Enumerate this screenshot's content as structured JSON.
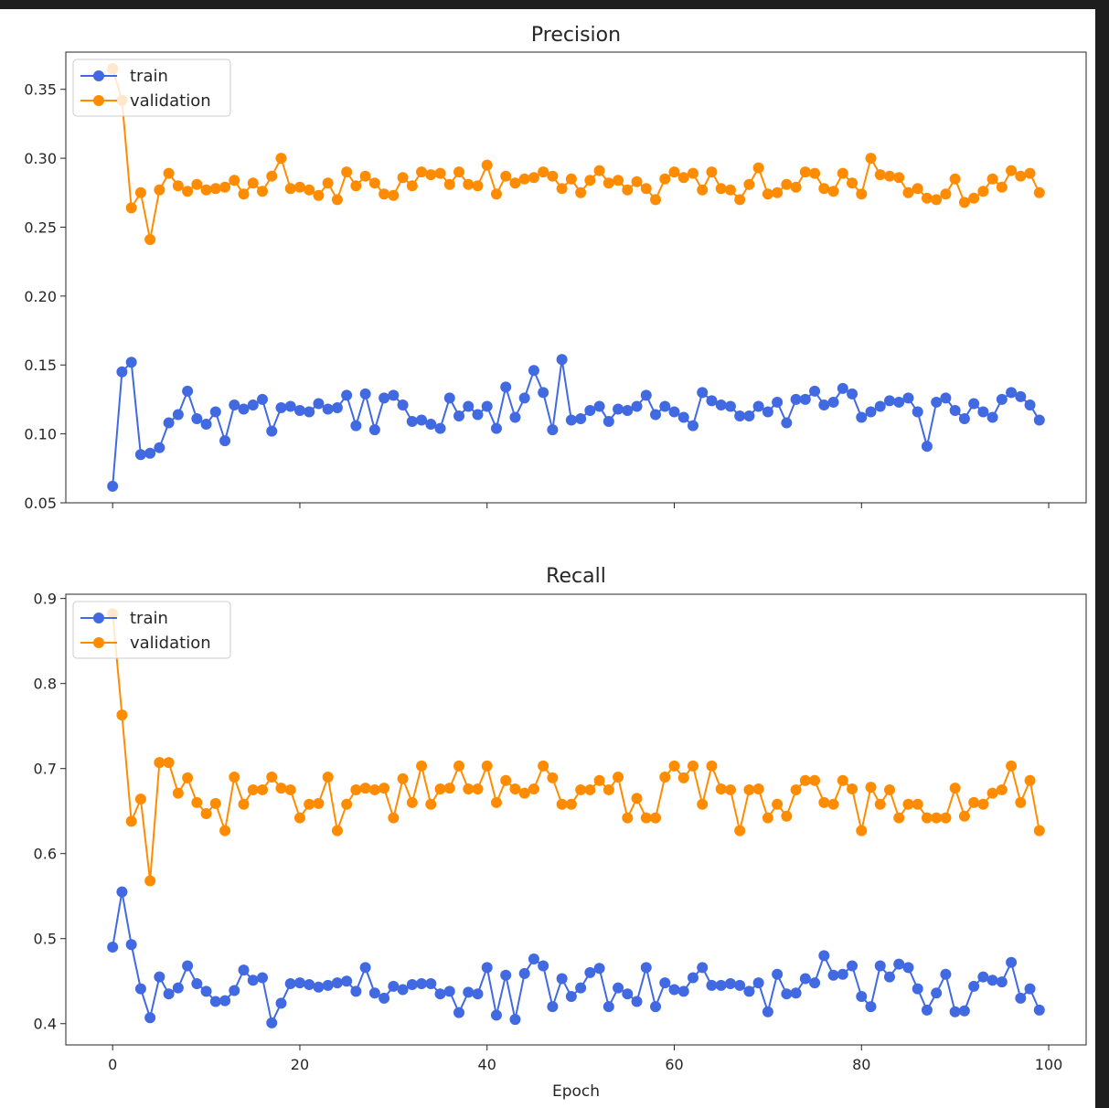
{
  "chart_data": [
    {
      "type": "line",
      "title": "Precision",
      "xlabel": "",
      "ylabel": "",
      "xlim": [
        -5,
        104
      ],
      "ylim": [
        0.05,
        0.377
      ],
      "xticks": [
        0,
        20,
        40,
        60,
        80,
        100
      ],
      "xtick_labels": [],
      "yticks": [
        0.05,
        0.1,
        0.15,
        0.2,
        0.25,
        0.3,
        0.35
      ],
      "ytick_labels": [
        "0.05",
        "0.10",
        "0.15",
        "0.20",
        "0.25",
        "0.30",
        "0.35"
      ],
      "grid": false,
      "legend": "upper-left",
      "series": [
        {
          "name": "train",
          "color": "#4169e1",
          "values": [
            0.062,
            0.145,
            0.152,
            0.085,
            0.086,
            0.09,
            0.108,
            0.114,
            0.131,
            0.111,
            0.107,
            0.116,
            0.095,
            0.121,
            0.118,
            0.121,
            0.125,
            0.102,
            0.119,
            0.12,
            0.117,
            0.116,
            0.122,
            0.118,
            0.119,
            0.128,
            0.106,
            0.129,
            0.103,
            0.126,
            0.128,
            0.121,
            0.109,
            0.11,
            0.107,
            0.104,
            0.126,
            0.113,
            0.12,
            0.114,
            0.12,
            0.104,
            0.134,
            0.112,
            0.126,
            0.146,
            0.13,
            0.103,
            0.154,
            0.11,
            0.111,
            0.117,
            0.12,
            0.109,
            0.118,
            0.117,
            0.12,
            0.128,
            0.114,
            0.12,
            0.116,
            0.112,
            0.106,
            0.13,
            0.124,
            0.121,
            0.12,
            0.113,
            0.113,
            0.12,
            0.116,
            0.123,
            0.108,
            0.125,
            0.125,
            0.131,
            0.121,
            0.123,
            0.133,
            0.129,
            0.112,
            0.116,
            0.12,
            0.124,
            0.123,
            0.126,
            0.116,
            0.091,
            0.123,
            0.126,
            0.117,
            0.111,
            0.122,
            0.116,
            0.112,
            0.125,
            0.13,
            0.127,
            0.121,
            0.11
          ]
        },
        {
          "name": "validation",
          "color": "#ff8c00",
          "values": [
            0.365,
            0.342,
            0.264,
            0.275,
            0.241,
            0.277,
            0.289,
            0.28,
            0.276,
            0.281,
            0.277,
            0.278,
            0.279,
            0.284,
            0.274,
            0.282,
            0.276,
            0.287,
            0.3,
            0.278,
            0.279,
            0.277,
            0.273,
            0.282,
            0.27,
            0.29,
            0.28,
            0.287,
            0.282,
            0.274,
            0.273,
            0.286,
            0.28,
            0.29,
            0.288,
            0.289,
            0.281,
            0.29,
            0.281,
            0.28,
            0.295,
            0.274,
            0.287,
            0.282,
            0.285,
            0.286,
            0.29,
            0.287,
            0.278,
            0.285,
            0.275,
            0.284,
            0.291,
            0.282,
            0.284,
            0.277,
            0.283,
            0.278,
            0.27,
            0.285,
            0.29,
            0.286,
            0.289,
            0.277,
            0.29,
            0.278,
            0.277,
            0.27,
            0.281,
            0.293,
            0.274,
            0.275,
            0.281,
            0.279,
            0.29,
            0.289,
            0.278,
            0.276,
            0.289,
            0.282,
            0.274,
            0.3,
            0.288,
            0.287,
            0.286,
            0.275,
            0.278,
            0.271,
            0.27,
            0.274,
            0.285,
            0.268,
            0.271,
            0.276,
            0.285,
            0.279,
            0.291,
            0.287,
            0.289,
            0.275
          ]
        }
      ]
    },
    {
      "type": "line",
      "title": "Recall",
      "xlabel": "Epoch",
      "ylabel": "",
      "xlim": [
        -5,
        104
      ],
      "ylim": [
        0.375,
        0.905
      ],
      "xticks": [
        0,
        20,
        40,
        60,
        80,
        100
      ],
      "xtick_labels": [
        "0",
        "20",
        "40",
        "60",
        "80",
        "100"
      ],
      "yticks": [
        0.4,
        0.5,
        0.6,
        0.7,
        0.8,
        0.9
      ],
      "ytick_labels": [
        "0.4",
        "0.5",
        "0.6",
        "0.7",
        "0.8",
        "0.9"
      ],
      "grid": false,
      "legend": "upper-left",
      "series": [
        {
          "name": "train",
          "color": "#4169e1",
          "values": [
            0.49,
            0.555,
            0.493,
            0.441,
            0.407,
            0.455,
            0.435,
            0.442,
            0.468,
            0.447,
            0.438,
            0.426,
            0.427,
            0.439,
            0.463,
            0.451,
            0.454,
            0.401,
            0.424,
            0.447,
            0.448,
            0.446,
            0.443,
            0.445,
            0.448,
            0.45,
            0.438,
            0.466,
            0.436,
            0.43,
            0.444,
            0.44,
            0.446,
            0.447,
            0.447,
            0.435,
            0.438,
            0.413,
            0.437,
            0.435,
            0.466,
            0.41,
            0.457,
            0.405,
            0.459,
            0.476,
            0.468,
            0.42,
            0.453,
            0.432,
            0.442,
            0.46,
            0.465,
            0.42,
            0.442,
            0.435,
            0.426,
            0.466,
            0.42,
            0.448,
            0.44,
            0.438,
            0.454,
            0.466,
            0.445,
            0.445,
            0.447,
            0.445,
            0.438,
            0.448,
            0.414,
            0.458,
            0.435,
            0.436,
            0.453,
            0.448,
            0.48,
            0.457,
            0.458,
            0.468,
            0.432,
            0.42,
            0.468,
            0.455,
            0.47,
            0.466,
            0.441,
            0.416,
            0.436,
            0.458,
            0.414,
            0.415,
            0.444,
            0.455,
            0.451,
            0.449,
            0.472,
            0.43,
            0.441,
            0.416
          ]
        },
        {
          "name": "validation",
          "color": "#ff8c00",
          "values": [
            0.882,
            0.763,
            0.638,
            0.664,
            0.568,
            0.707,
            0.707,
            0.671,
            0.689,
            0.66,
            0.647,
            0.659,
            0.627,
            0.69,
            0.658,
            0.675,
            0.675,
            0.69,
            0.677,
            0.675,
            0.642,
            0.658,
            0.659,
            0.69,
            0.627,
            0.658,
            0.675,
            0.677,
            0.675,
            0.677,
            0.642,
            0.688,
            0.66,
            0.703,
            0.658,
            0.676,
            0.677,
            0.703,
            0.676,
            0.676,
            0.703,
            0.66,
            0.686,
            0.676,
            0.671,
            0.676,
            0.703,
            0.689,
            0.658,
            0.658,
            0.675,
            0.675,
            0.686,
            0.675,
            0.69,
            0.642,
            0.665,
            0.642,
            0.642,
            0.69,
            0.703,
            0.689,
            0.703,
            0.658,
            0.703,
            0.676,
            0.675,
            0.627,
            0.675,
            0.676,
            0.642,
            0.658,
            0.644,
            0.675,
            0.686,
            0.686,
            0.66,
            0.658,
            0.686,
            0.676,
            0.627,
            0.678,
            0.658,
            0.675,
            0.642,
            0.658,
            0.658,
            0.642,
            0.642,
            0.642,
            0.677,
            0.644,
            0.66,
            0.658,
            0.671,
            0.675,
            0.703,
            0.66,
            0.686,
            0.627
          ]
        }
      ]
    }
  ]
}
